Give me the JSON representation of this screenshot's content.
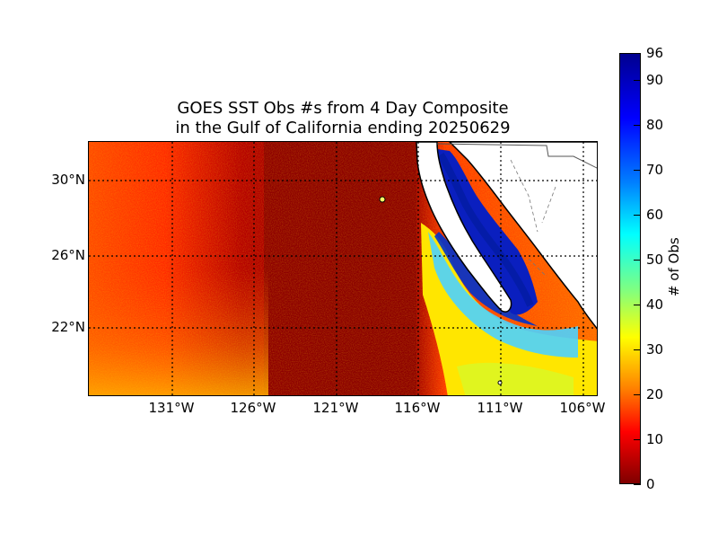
{
  "title_line1": "GOES SST Obs #s from 4 Day Composite",
  "title_line2": "in the Gulf of California ending 20250629",
  "lat_labels": [
    "30°N",
    "26°N",
    "22°N"
  ],
  "lon_labels": [
    "131°W",
    "126°W",
    "121°W",
    "116°W",
    "111°W",
    "106°W"
  ],
  "colorbar": {
    "label": "# of Obs",
    "ticks": [
      "0",
      "10",
      "20",
      "30",
      "40",
      "50",
      "60",
      "70",
      "80",
      "90",
      "96"
    ],
    "colormap": "jet",
    "min": 0,
    "max": 96
  },
  "colors": {
    "offshore_low": "#8b0000",
    "near_coast_mid": "#ffff00",
    "gulf_high": "#0000cc",
    "land": "#ffffff",
    "coastline": "#000000"
  }
}
